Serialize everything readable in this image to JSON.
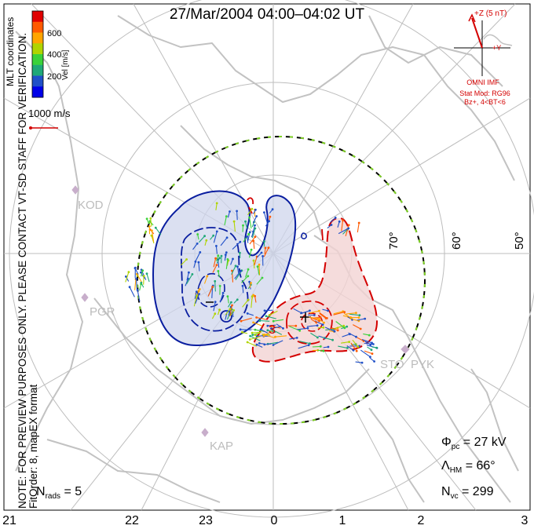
{
  "title": "27/Mar/2004 04:00–04:02 UT",
  "notes": {
    "preview": "NOTE: FOR PREVIEW PURPOSES ONLY. PLEASE CONTACT VT-SD STAFF FOR VERIFICATION.",
    "fitorder": "FitOrder: 8, mapEX format",
    "coords": "MLT coordinates"
  },
  "colorbar": {
    "label": "Vel [m/s]",
    "ticks": [
      "600",
      "400",
      "200"
    ],
    "colors": [
      "#e00000",
      "#ff5a00",
      "#ffa500",
      "#b0d400",
      "#3ad23a",
      "#1fa878",
      "#2050c8",
      "#0000e8"
    ]
  },
  "scale": {
    "label": "1000 m/s"
  },
  "imf": {
    "z_label": "+Z (5 nT)",
    "y_label": "+Y",
    "source": "OMNI IMF",
    "model": "Stat Mod: RG96",
    "condition": "Bz+, 4<BT<6"
  },
  "stations": [
    "KOD",
    "PGR",
    "KAP",
    "PYK",
    "STO"
  ],
  "latitudes": [
    "70°",
    "60°",
    "50°"
  ],
  "mlt_ticks": [
    "21",
    "22",
    "23",
    "0",
    "1",
    "2",
    "3"
  ],
  "stats": {
    "phi_sym": "Φ",
    "phi_sub": "pc",
    "phi_val": "= 27 kV",
    "lambda_sym": "Λ",
    "lambda_sub": "HM",
    "lambda_val": "= 66°",
    "nvc_sym": "N",
    "nvc_sub": "vc",
    "nvc_val": "= 299",
    "nrads_sym": "N",
    "nrads_sub": "rads",
    "nrads_val": "= 5"
  },
  "contour_label": "3",
  "colors": {
    "positive": "#d40000",
    "negative": "#0a1ea0",
    "grid": "#bdbdbd",
    "land": "#c2c2c2",
    "boundary_dash": "#7ed321"
  }
}
